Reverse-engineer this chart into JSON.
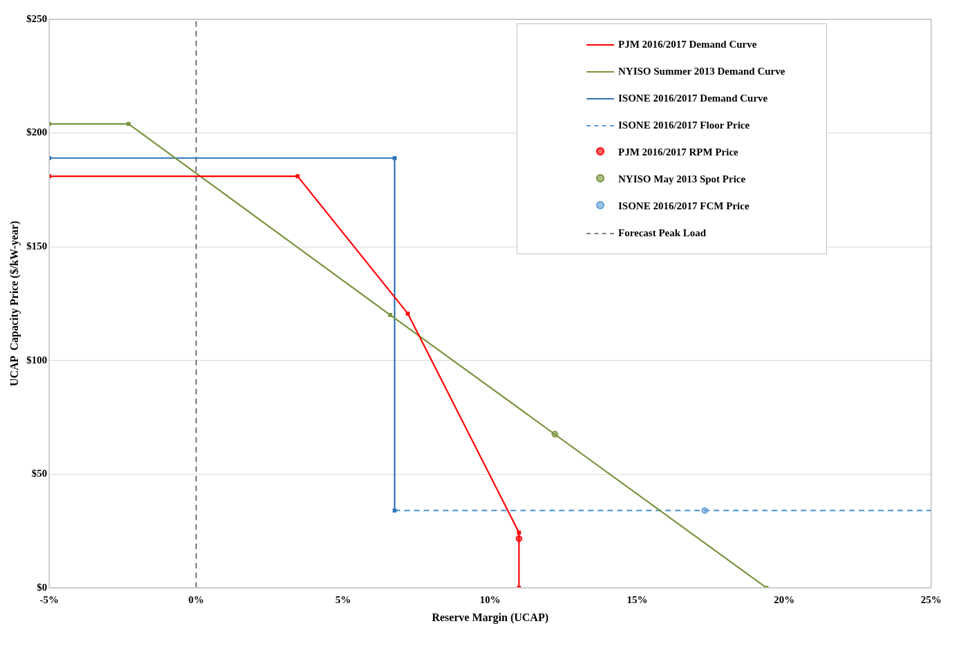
{
  "chart_data": {
    "type": "line",
    "xlabel": "Reserve Margin (UCAP)",
    "ylabel": "UCAP  Capacity Price ($/kW-year)",
    "xlim": [
      -5,
      25
    ],
    "xticks": [
      {
        "value": -5,
        "label": "-5%"
      },
      {
        "value": 0,
        "label": "0%"
      },
      {
        "value": 5,
        "label": "5%"
      },
      {
        "value": 10,
        "label": "10%"
      },
      {
        "value": 15,
        "label": "15%"
      },
      {
        "value": 20,
        "label": "20%"
      },
      {
        "value": 25,
        "label": "25%"
      }
    ],
    "ylim": [
      0,
      250
    ],
    "yticks": [
      {
        "value": 0,
        "label": "$0"
      },
      {
        "value": 50,
        "label": "$50"
      },
      {
        "value": 100,
        "label": "$100"
      },
      {
        "value": 150,
        "label": "$150"
      },
      {
        "value": 200,
        "label": "$200"
      },
      {
        "value": 250,
        "label": "$250"
      }
    ],
    "grid": "y",
    "legend": "top right",
    "series": [
      {
        "name": "PJM 2016/2017 Demand Curve",
        "color": "#ff0000",
        "marker": "square",
        "x": [
          -5,
          3.45,
          7.2,
          10.98,
          10.98
        ],
        "values": [
          181,
          181,
          120.6,
          24.3,
          0
        ]
      },
      {
        "name": "NYISO Summer 2013 Demand Curve",
        "color": "#77933c",
        "marker": "square",
        "x": [
          -5,
          -2.3,
          6.6,
          19.4
        ],
        "values": [
          204,
          204,
          120,
          0
        ]
      },
      {
        "name": "ISONE 2016/2017 Demand Curve",
        "color": "#2e75b6",
        "marker": "square",
        "x": [
          -5,
          6.75,
          6.75
        ],
        "values": [
          189,
          189,
          34
        ]
      },
      {
        "name": "ISONE 2016/2017 Floor Price",
        "color": "#5b9bd5",
        "marker": "none",
        "line_style": "dashed",
        "x": [
          6.75,
          25
        ],
        "values": [
          34,
          34
        ]
      },
      {
        "name": "PJM 2016/2017 RPM Price",
        "type": "scatter",
        "color": "#ff0000",
        "marker": "circle",
        "x": [
          10.98
        ],
        "values": [
          21.6
        ]
      },
      {
        "name": "NYISO May 2013 Spot Price",
        "type": "scatter",
        "color": "#77933c",
        "marker": "circle",
        "x": [
          12.2
        ],
        "values": [
          67.6
        ]
      },
      {
        "name": "ISONE 2016/2017 FCM Price",
        "type": "scatter",
        "color": "#5b9bd5",
        "marker": "circle",
        "x": [
          17.3
        ],
        "values": [
          34
        ]
      },
      {
        "name": "Forecast Peak Load",
        "color": "#7f7f7f",
        "marker": "none",
        "line_style": "dashed",
        "x": [
          0,
          0
        ],
        "values": [
          0,
          250
        ]
      }
    ]
  }
}
